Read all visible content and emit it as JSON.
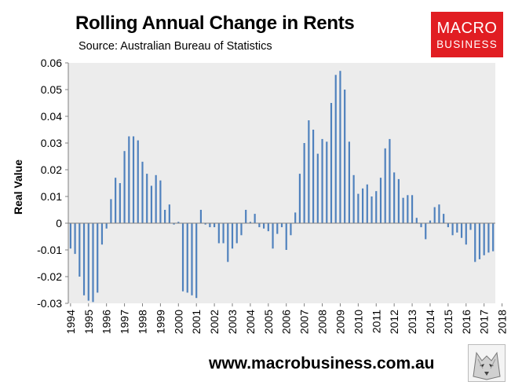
{
  "header": {
    "title": "Rolling Annual Change in Rents",
    "subtitle": "Source: Australian Bureau of Statistics"
  },
  "logo": {
    "line1": "MACRO",
    "line2": "BUSINESS",
    "color": "#e11d22"
  },
  "footer": {
    "url": "www.macrobusiness.com.au"
  },
  "colors": {
    "bar": "#4f81bd",
    "plot_bg": "#ececec",
    "axis": "#808080"
  },
  "chart_data": {
    "type": "bar",
    "title": "Rolling Annual Change in Rents",
    "xlabel": "",
    "ylabel": "Real Value",
    "ylim": [
      -0.03,
      0.06
    ],
    "yticks": [
      -0.03,
      -0.02,
      -0.01,
      0,
      0.01,
      0.02,
      0.03,
      0.04,
      0.05,
      0.06
    ],
    "ytick_labels": [
      "-0.03",
      "-0.02",
      "-0.01",
      "0",
      "0.01",
      "0.02",
      "0.03",
      "0.04",
      "0.05",
      "0.06"
    ],
    "xticks": [
      "1994",
      "1995",
      "1996",
      "1997",
      "1998",
      "1999",
      "2000",
      "2001",
      "2002",
      "2003",
      "2004",
      "2005",
      "2006",
      "2007",
      "2008",
      "2009",
      "2010",
      "2011",
      "2012",
      "2013",
      "2014",
      "2015",
      "2016",
      "2017",
      "2018"
    ],
    "x_start": "1994 Q1",
    "frequency": "quarterly",
    "grid": false,
    "values": [
      -0.0095,
      -0.0115,
      -0.02,
      -0.027,
      -0.029,
      -0.0295,
      -0.026,
      -0.008,
      -0.002,
      0.009,
      0.017,
      0.015,
      0.027,
      0.0325,
      0.0325,
      0.031,
      0.023,
      0.0185,
      0.014,
      0.018,
      0.016,
      0.005,
      0.007,
      -0.0005,
      0.0005,
      -0.0255,
      -0.026,
      -0.027,
      -0.028,
      0.005,
      -0.0005,
      -0.0015,
      -0.0015,
      -0.0075,
      -0.0075,
      -0.0145,
      -0.0095,
      -0.0075,
      -0.0045,
      0.005,
      0.0005,
      0.0035,
      -0.0015,
      -0.002,
      -0.003,
      -0.0095,
      -0.004,
      -0.0015,
      -0.01,
      -0.0045,
      0.004,
      0.0185,
      0.03,
      0.0385,
      0.035,
      0.026,
      0.0315,
      0.0305,
      0.045,
      0.0555,
      0.057,
      0.05,
      0.0305,
      0.018,
      0.011,
      0.013,
      0.0145,
      0.01,
      0.012,
      0.017,
      0.028,
      0.0315,
      0.019,
      0.0165,
      0.0095,
      0.0105,
      0.0105,
      0.002,
      -0.0015,
      -0.006,
      0.001,
      0.006,
      0.007,
      0.0035,
      -0.0015,
      -0.0045,
      -0.0035,
      -0.0055,
      -0.008,
      -0.0025,
      -0.0145,
      -0.0135,
      -0.012,
      -0.011,
      -0.0105
    ]
  }
}
